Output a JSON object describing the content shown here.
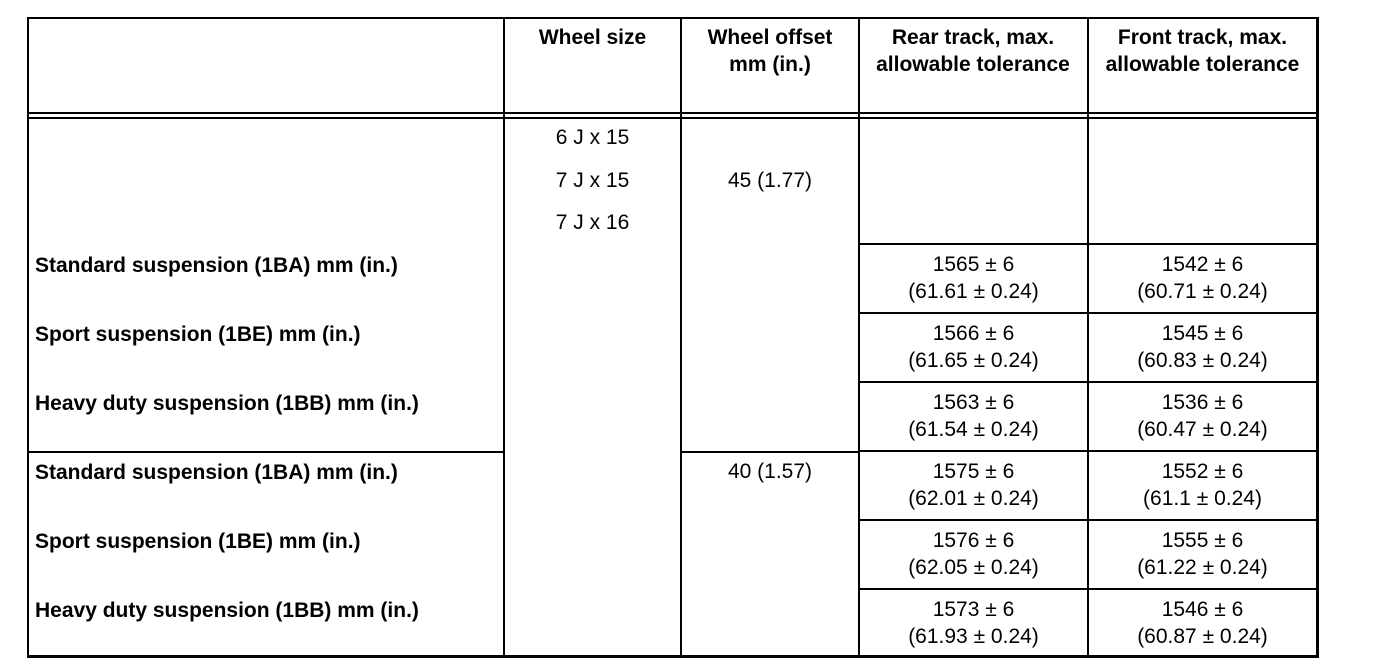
{
  "headers": {
    "wheel_size": "Wheel size",
    "wheel_offset": "Wheel offset mm (in.)",
    "rear_track": "Rear track, max. allowable tolerance",
    "front_track": "Front track, max. allowable tolerance"
  },
  "wheel_sizes": [
    "6 J x 15",
    "7 J x 15",
    "7 J x 16"
  ],
  "groups": [
    {
      "offset": "45 (1.77)",
      "rows": [
        {
          "label": "Standard suspension (1BA) mm (in.)",
          "rear_mm": "1565 ± 6",
          "rear_in": "(61.61 ± 0.24)",
          "front_mm": "1542 ± 6",
          "front_in": "(60.71 ± 0.24)"
        },
        {
          "label": "Sport suspension (1BE) mm (in.)",
          "rear_mm": "1566 ± 6",
          "rear_in": "(61.65 ± 0.24)",
          "front_mm": "1545 ± 6",
          "front_in": "(60.83 ± 0.24)"
        },
        {
          "label": "Heavy duty suspension (1BB) mm (in.)",
          "rear_mm": "1563 ± 6",
          "rear_in": "(61.54 ± 0.24)",
          "front_mm": "1536 ± 6",
          "front_in": "(60.47 ± 0.24)"
        }
      ]
    },
    {
      "offset": "40 (1.57)",
      "rows": [
        {
          "label": "Standard suspension (1BA) mm (in.)",
          "rear_mm": "1575 ± 6",
          "rear_in": "(62.01 ± 0.24)",
          "front_mm": "1552 ± 6",
          "front_in": "(61.1 ± 0.24)"
        },
        {
          "label": "Sport suspension (1BE) mm (in.)",
          "rear_mm": "1576 ± 6",
          "rear_in": "(62.05 ± 0.24)",
          "front_mm": "1555 ± 6",
          "front_in": "(61.22 ± 0.24)"
        },
        {
          "label": "Heavy duty suspension (1BB) mm (in.)",
          "rear_mm": "1573 ± 6",
          "rear_in": "(61.93 ± 0.24)",
          "front_mm": "1546 ± 6",
          "front_in": "(60.87 ± 0.24)"
        }
      ]
    }
  ]
}
